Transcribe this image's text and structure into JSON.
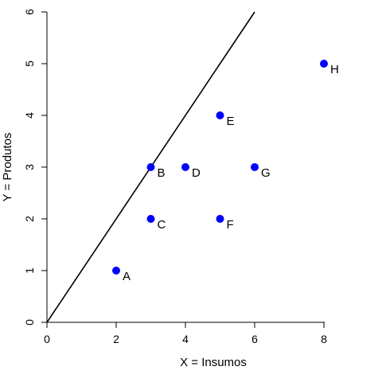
{
  "chart_data": {
    "type": "scatter",
    "xlabel": "X = Insumos",
    "ylabel": "Y = Produtos",
    "xlim": [
      0,
      8.6
    ],
    "ylim": [
      0,
      6
    ],
    "x_ticks": [
      "0",
      "2",
      "4",
      "6",
      "8"
    ],
    "y_ticks": [
      "0",
      "1",
      "2",
      "3",
      "4",
      "5",
      "6"
    ],
    "grid": false,
    "legend": "none",
    "point_color": "#0000FF",
    "line_color": "#000000",
    "points": [
      {
        "label": "A",
        "x": 2,
        "y": 1
      },
      {
        "label": "B",
        "x": 3,
        "y": 3
      },
      {
        "label": "C",
        "x": 3,
        "y": 2
      },
      {
        "label": "D",
        "x": 4,
        "y": 3
      },
      {
        "label": "E",
        "x": 5,
        "y": 4
      },
      {
        "label": "F",
        "x": 5,
        "y": 2
      },
      {
        "label": "G",
        "x": 6,
        "y": 3
      },
      {
        "label": "H",
        "x": 8,
        "y": 5
      }
    ],
    "frontier_line": {
      "x": [
        0,
        6
      ],
      "y": [
        0,
        6
      ]
    }
  }
}
